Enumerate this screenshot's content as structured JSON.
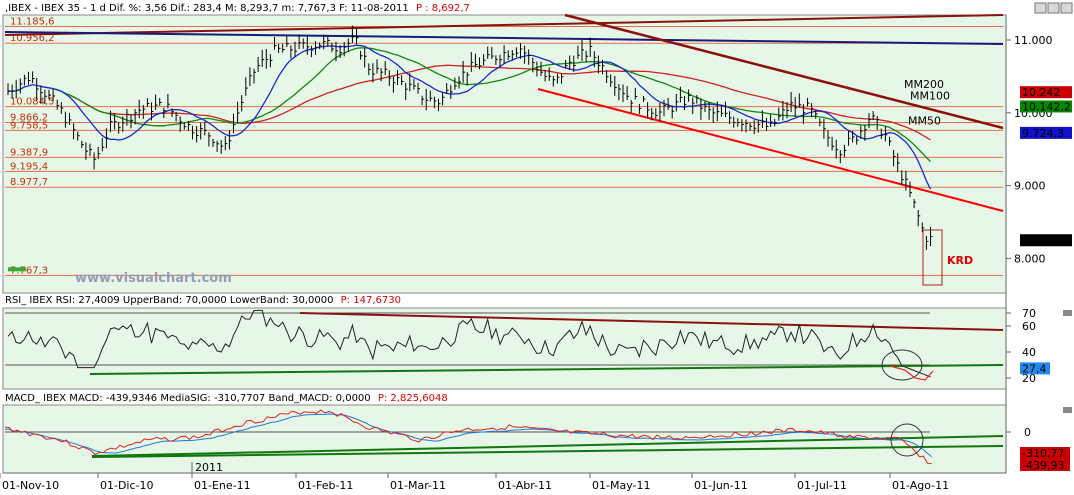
{
  "chart_data": [
    {
      "type": "line",
      "header": {
        "prefix": ",IBEX - IBEX 35 - 1 d Dif. %: 3,56 Dif.: 283,4 M: 8,293,7 m: 7,767,3 F: 11-08-2011",
        "extra": "P : 8,692,7"
      },
      "y_ticks": [
        "11.000",
        "10.000",
        "9.000",
        "8.000"
      ],
      "y_tick_values": [
        11000,
        10000,
        9000,
        8000
      ],
      "ylim": [
        7750,
        11400
      ],
      "x_ticks": [
        "01-Nov-10",
        "01-Dic-10",
        "01-Ene-11",
        "01-Feb-11",
        "01-Mar-11",
        "01-Abr-11",
        "01-May-11",
        "01-Jun-11",
        "01-Jul-11",
        "01-Ago-11"
      ],
      "year_label": "2011",
      "levels": [
        {
          "label": "11.185,6",
          "value": 11185.6
        },
        {
          "label": "10.956,2",
          "value": 10956.2
        },
        {
          "label": "10.084,5",
          "value": 10084.5
        },
        {
          "label": "9.866,2",
          "value": 9866.2
        },
        {
          "label": "9.758,5",
          "value": 9758.5
        },
        {
          "label": "9.387,9",
          "value": 9387.9
        },
        {
          "label": "9.195,4",
          "value": 9195.4
        },
        {
          "label": "8.977,7",
          "value": 8977.7
        },
        {
          "label": "7.767,3",
          "value": 7767.3
        }
      ],
      "series_labels": [
        {
          "name": "MM200",
          "color": "#cc0000"
        },
        {
          "name": "MM100",
          "color": "#007700"
        },
        {
          "name": "MM50",
          "color": "#2222cc"
        }
      ],
      "value_badges": [
        {
          "label": "10.242",
          "value": 10242,
          "color": "#cc0000"
        },
        {
          "label": "10.142,2",
          "value": 10142.2,
          "color": "#008800"
        },
        {
          "label": "9.724,3",
          "value": 9724.3,
          "color": "#1111cc"
        },
        {
          "label": "8.249,4",
          "value": 8249.4,
          "color": "#000000"
        }
      ],
      "annotation": "KRD",
      "watermark": "www.visualchart.com",
      "colors": {
        "plot_bg": "#e7f7e7",
        "price": "#000000",
        "mm200": "#cc2222",
        "mm100": "#118811",
        "mm50": "#1a2ad0",
        "levels": "#e07050",
        "trend_red": "#ff0000",
        "trend_dark": "#8b1010",
        "trend_navy": "#1a1a7a"
      }
    },
    {
      "type": "line",
      "header": {
        "prefix": "RSI_ IBEX RSI: 27,4009 UpperBand: 70,0000 LowerBand: 30,0000",
        "extra": "P: 147,6730"
      },
      "y_ticks": [
        "70",
        "60",
        "40",
        "20"
      ],
      "y_tick_values": [
        70,
        60,
        40,
        20
      ],
      "ylim": [
        15,
        72
      ],
      "value_badge": {
        "label": "27,4",
        "value": 27.4,
        "color": "#2288ee"
      }
    },
    {
      "type": "line",
      "header": {
        "prefix": "MACD_ IBEX MACD: -439,9346 MediaSIG: -310,7707 Band_MACD: 0,0000",
        "extra": "P: 2,825,6048"
      },
      "y_ticks": [
        "0"
      ],
      "value_badges": [
        {
          "label": "-310,77",
          "value": -310.77,
          "color": "#cc0000"
        },
        {
          "label": "-439,93",
          "value": -439.93,
          "color": "#cc0000"
        }
      ]
    }
  ]
}
